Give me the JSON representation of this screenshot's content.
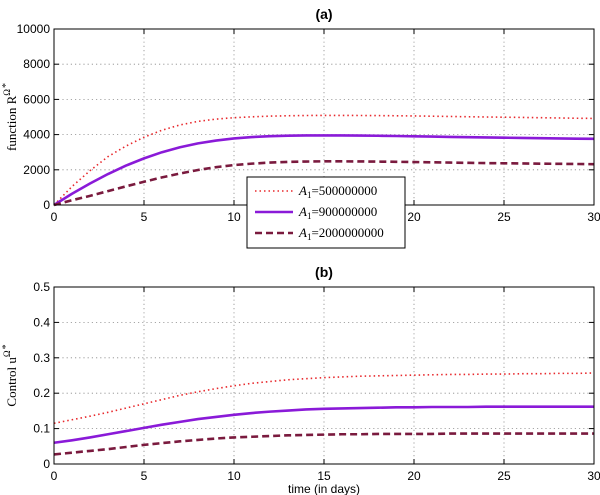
{
  "chart_data": [
    {
      "type": "line",
      "title": "(a)",
      "ylabel": "function R",
      "ylabel_sup": "Ω",
      "ylabel_star": "*",
      "xlabel": "",
      "xlim": [
        0,
        30
      ],
      "ylim": [
        0,
        10000
      ],
      "xticks": [
        0,
        5,
        10,
        15,
        20,
        25,
        30
      ],
      "yticks": [
        0,
        2000,
        4000,
        6000,
        8000,
        10000
      ],
      "grid": true,
      "legend": {
        "placement": "bottom-center",
        "entries": [
          {
            "pre": "A",
            "sub": "1",
            "value": "=500000000"
          },
          {
            "pre": "A",
            "sub": "1",
            "value": "=900000000"
          },
          {
            "pre": "A",
            "sub": "1",
            "value": "=2000000000"
          }
        ]
      },
      "x": [
        0,
        1,
        2,
        3,
        4,
        5,
        6,
        7,
        8,
        9,
        10,
        11,
        12,
        13,
        14,
        15,
        16,
        17,
        18,
        19,
        20,
        21,
        22,
        23,
        24,
        25,
        26,
        27,
        28,
        29,
        30
      ],
      "series": [
        {
          "name": "A1=500000000",
          "color": "#e8282c",
          "style": "dotted",
          "values": [
            0,
            1050,
            1950,
            2750,
            3350,
            3850,
            4250,
            4550,
            4750,
            4880,
            4960,
            5010,
            5050,
            5070,
            5085,
            5090,
            5090,
            5085,
            5080,
            5070,
            5060,
            5045,
            5030,
            5015,
            5000,
            4990,
            4975,
            4960,
            4945,
            4930,
            4920
          ]
        },
        {
          "name": "A1=900000000",
          "color": "#8a1ad8",
          "style": "solid",
          "values": [
            0,
            640,
            1220,
            1760,
            2240,
            2650,
            3000,
            3280,
            3500,
            3660,
            3780,
            3860,
            3910,
            3940,
            3950,
            3955,
            3950,
            3945,
            3935,
            3920,
            3905,
            3890,
            3870,
            3855,
            3840,
            3825,
            3810,
            3795,
            3780,
            3770,
            3760
          ]
        },
        {
          "name": "A1=2000000000",
          "color": "#7a1a3e",
          "style": "dashed",
          "values": [
            0,
            270,
            520,
            790,
            1060,
            1320,
            1570,
            1790,
            1990,
            2150,
            2270,
            2350,
            2410,
            2450,
            2470,
            2480,
            2480,
            2475,
            2465,
            2455,
            2440,
            2425,
            2410,
            2395,
            2380,
            2370,
            2360,
            2350,
            2340,
            2330,
            2320
          ]
        }
      ]
    },
    {
      "type": "line",
      "title": "(b)",
      "ylabel": "Control u",
      "ylabel_sup": "Ω",
      "ylabel_star": "*",
      "xlabel": "time (in days)",
      "xlim": [
        0,
        30
      ],
      "ylim": [
        0,
        0.5
      ],
      "xticks": [
        0,
        5,
        10,
        15,
        20,
        25,
        30
      ],
      "yticks": [
        0,
        0.1,
        0.2,
        0.3,
        0.4,
        0.5
      ],
      "grid": true,
      "x": [
        0,
        1,
        2,
        3,
        4,
        5,
        6,
        7,
        8,
        9,
        10,
        11,
        12,
        13,
        14,
        15,
        16,
        17,
        18,
        19,
        20,
        21,
        22,
        23,
        24,
        25,
        26,
        27,
        28,
        29,
        30
      ],
      "series": [
        {
          "name": "A1=500000000",
          "color": "#e8282c",
          "style": "dotted",
          "values": [
            0.115,
            0.125,
            0.135,
            0.146,
            0.158,
            0.17,
            0.182,
            0.194,
            0.204,
            0.213,
            0.221,
            0.228,
            0.233,
            0.238,
            0.241,
            0.244,
            0.246,
            0.248,
            0.249,
            0.25,
            0.251,
            0.252,
            0.253,
            0.253,
            0.254,
            0.254,
            0.255,
            0.255,
            0.256,
            0.256,
            0.257
          ]
        },
        {
          "name": "A1=900000000",
          "color": "#8a1ad8",
          "style": "solid",
          "values": [
            0.06,
            0.067,
            0.075,
            0.084,
            0.093,
            0.102,
            0.111,
            0.119,
            0.127,
            0.133,
            0.139,
            0.144,
            0.148,
            0.151,
            0.154,
            0.156,
            0.157,
            0.158,
            0.159,
            0.16,
            0.16,
            0.161,
            0.161,
            0.161,
            0.162,
            0.162,
            0.162,
            0.162,
            0.162,
            0.162,
            0.162
          ]
        },
        {
          "name": "A1=2000000000",
          "color": "#7a1a3e",
          "style": "dashed",
          "values": [
            0.027,
            0.032,
            0.037,
            0.042,
            0.048,
            0.054,
            0.059,
            0.064,
            0.068,
            0.072,
            0.075,
            0.077,
            0.079,
            0.081,
            0.082,
            0.083,
            0.084,
            0.084,
            0.085,
            0.085,
            0.085,
            0.085,
            0.086,
            0.086,
            0.086,
            0.086,
            0.086,
            0.086,
            0.086,
            0.086,
            0.086
          ]
        }
      ]
    }
  ]
}
